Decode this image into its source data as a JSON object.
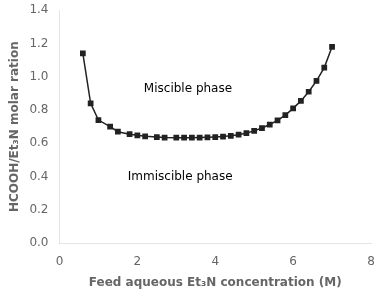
{
  "chart_data": {
    "type": "line",
    "x": [
      0.6,
      0.8,
      1.0,
      1.3,
      1.5,
      1.8,
      2.0,
      2.2,
      2.5,
      2.7,
      3.0,
      3.2,
      3.4,
      3.6,
      3.8,
      4.0,
      4.2,
      4.4,
      4.6,
      4.8,
      5.0,
      5.2,
      5.4,
      5.6,
      5.8,
      6.0,
      6.2,
      6.4,
      6.6,
      6.8,
      7.0
    ],
    "values": [
      1.14,
      0.84,
      0.74,
      0.7,
      0.67,
      0.655,
      0.648,
      0.642,
      0.638,
      0.635,
      0.634,
      0.634,
      0.634,
      0.635,
      0.636,
      0.638,
      0.641,
      0.645,
      0.652,
      0.662,
      0.675,
      0.692,
      0.713,
      0.738,
      0.77,
      0.81,
      0.855,
      0.91,
      0.975,
      1.055,
      1.18
    ],
    "color": "#222222",
    "marker": "square",
    "xlabel": "Feed aqueous Et₃N concentration (M)",
    "ylabel": "HCOOH/Et₃N molar ration",
    "xlim": [
      0,
      8
    ],
    "ylim": [
      0,
      1.4
    ],
    "xticks": [
      0,
      2,
      4,
      6,
      8
    ],
    "yticks": [
      {
        "value": 0,
        "label": "0.0"
      },
      0.2,
      0.4,
      0.6,
      0.8,
      {
        "value": 1.0,
        "label": "1.0"
      },
      1.2,
      1.4
    ],
    "grid": false,
    "annotations": [
      {
        "text": "Miscible phase",
        "x": 3.3,
        "y": 0.93
      },
      {
        "text": "Immiscible phase",
        "x": 3.1,
        "y": 0.4
      }
    ]
  }
}
